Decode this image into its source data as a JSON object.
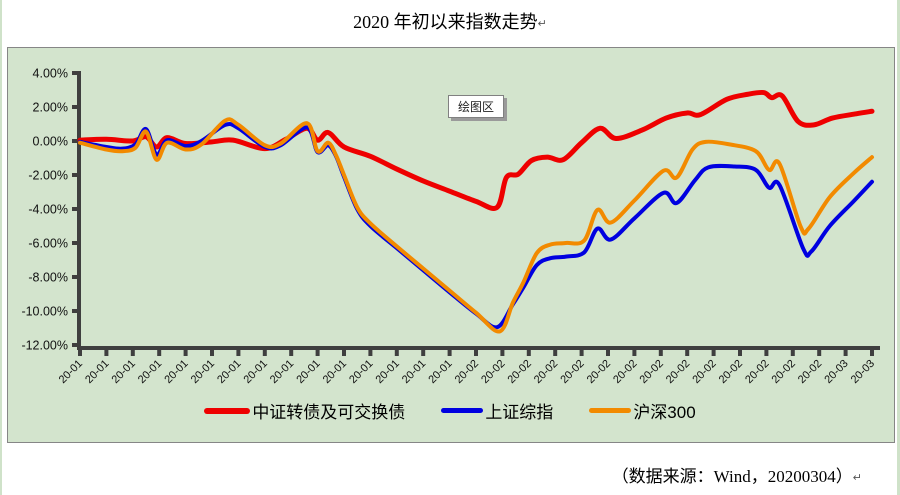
{
  "page": {
    "title": "2020 年初以来指数走势",
    "paragraph_mark": "↵",
    "footer": "（数据来源：Wind，20200304）"
  },
  "tooltip": {
    "label": "绘图区"
  },
  "chart_data": {
    "type": "line",
    "title": "2020 年初以来指数走势",
    "xlabel": "",
    "ylabel": "",
    "y_unit": "percent",
    "x_unit": "trading-day index (labels show YY-MM)",
    "ylim": [
      -12,
      4
    ],
    "y_tick_labels": [
      "4.00%",
      "2.00%",
      "0.00%",
      "-2.00%",
      "-4.00%",
      "-6.00%",
      "-8.00%",
      "-10.00%",
      "-12.00%"
    ],
    "y_tick_values": [
      4,
      2,
      0,
      -2,
      -4,
      -6,
      -8,
      -10,
      -12
    ],
    "x_tick_labels": [
      "20-01",
      "20-01",
      "20-01",
      "20-01",
      "20-01",
      "20-01",
      "20-01",
      "20-01",
      "20-01",
      "20-01",
      "20-01",
      "20-01",
      "20-01",
      "20-01",
      "20-01",
      "20-02",
      "20-02",
      "20-02",
      "20-02",
      "20-02",
      "20-02",
      "20-02",
      "20-02",
      "20-02",
      "20-02",
      "20-02",
      "20-02",
      "20-02",
      "20-02",
      "20-03",
      "20-03"
    ],
    "grid": false,
    "legend_position": "bottom",
    "plot_bg": "#d3e4cd",
    "axis_color": "#3f3f3f",
    "series": [
      {
        "name": "中证转债及可交换债",
        "color": "#ee0000",
        "width": 5,
        "points": [
          [
            0,
            0.05
          ],
          [
            1,
            0.1
          ],
          [
            2,
            0.0
          ],
          [
            2.5,
            0.25
          ],
          [
            2.9,
            -0.35
          ],
          [
            3.3,
            0.2
          ],
          [
            4,
            -0.15
          ],
          [
            5,
            -0.05
          ],
          [
            5.8,
            0.05
          ],
          [
            7,
            -0.45
          ],
          [
            7.8,
            0.1
          ],
          [
            8.6,
            0.75
          ],
          [
            9.0,
            0.05
          ],
          [
            9.4,
            0.5
          ],
          [
            10,
            -0.35
          ],
          [
            11,
            -0.9
          ],
          [
            12,
            -1.65
          ],
          [
            13,
            -2.35
          ],
          [
            14,
            -2.95
          ],
          [
            15,
            -3.55
          ],
          [
            15.8,
            -3.9
          ],
          [
            16.15,
            -2.15
          ],
          [
            16.6,
            -1.95
          ],
          [
            17.1,
            -1.15
          ],
          [
            17.7,
            -0.95
          ],
          [
            18.3,
            -1.1
          ],
          [
            19,
            -0.1
          ],
          [
            19.7,
            0.75
          ],
          [
            20.3,
            0.15
          ],
          [
            21.3,
            0.65
          ],
          [
            22.2,
            1.35
          ],
          [
            23,
            1.65
          ],
          [
            23.5,
            1.55
          ],
          [
            24.5,
            2.45
          ],
          [
            25.3,
            2.75
          ],
          [
            25.9,
            2.85
          ],
          [
            26.2,
            2.55
          ],
          [
            26.6,
            2.65
          ],
          [
            27.2,
            1.15
          ],
          [
            27.8,
            0.95
          ],
          [
            28.5,
            1.35
          ],
          [
            29.4,
            1.6
          ],
          [
            30,
            1.75
          ]
        ]
      },
      {
        "name": "上证综指",
        "color": "#0000e0",
        "width": 4,
        "points": [
          [
            0,
            -0.05
          ],
          [
            1,
            -0.35
          ],
          [
            1.6,
            -0.45
          ],
          [
            2.1,
            -0.2
          ],
          [
            2.5,
            0.7
          ],
          [
            2.9,
            -0.8
          ],
          [
            3.3,
            0.05
          ],
          [
            4,
            -0.3
          ],
          [
            4.6,
            0.0
          ],
          [
            5.5,
            0.95
          ],
          [
            6,
            0.75
          ],
          [
            7,
            -0.35
          ],
          [
            7.6,
            -0.25
          ],
          [
            8.6,
            0.8
          ],
          [
            9.0,
            -0.65
          ],
          [
            9.4,
            -0.25
          ],
          [
            9.7,
            -0.9
          ],
          [
            10,
            -2.1
          ],
          [
            10.5,
            -4.0
          ],
          [
            11,
            -5.0
          ],
          [
            12,
            -6.3
          ],
          [
            13,
            -7.6
          ],
          [
            14,
            -8.9
          ],
          [
            15,
            -10.15
          ],
          [
            15.8,
            -10.95
          ],
          [
            16.4,
            -9.6
          ],
          [
            16.8,
            -8.6
          ],
          [
            17.3,
            -7.3
          ],
          [
            17.8,
            -6.9
          ],
          [
            18.4,
            -6.8
          ],
          [
            19.1,
            -6.55
          ],
          [
            19.6,
            -5.15
          ],
          [
            20.1,
            -5.8
          ],
          [
            21,
            -4.55
          ],
          [
            22.1,
            -3.05
          ],
          [
            22.6,
            -3.65
          ],
          [
            23.3,
            -2.3
          ],
          [
            23.8,
            -1.55
          ],
          [
            24.8,
            -1.5
          ],
          [
            25.6,
            -1.7
          ],
          [
            26.1,
            -2.75
          ],
          [
            26.5,
            -2.6
          ],
          [
            27.4,
            -6.35
          ],
          [
            27.7,
            -6.5
          ],
          [
            28.4,
            -5.0
          ],
          [
            29.3,
            -3.55
          ],
          [
            30,
            -2.4
          ]
        ]
      },
      {
        "name": "沪深300",
        "color": "#f28a00",
        "width": 4,
        "points": [
          [
            0,
            -0.1
          ],
          [
            1,
            -0.5
          ],
          [
            1.6,
            -0.6
          ],
          [
            2.1,
            -0.4
          ],
          [
            2.5,
            0.55
          ],
          [
            2.9,
            -1.1
          ],
          [
            3.3,
            -0.1
          ],
          [
            4,
            -0.5
          ],
          [
            4.6,
            -0.2
          ],
          [
            5.5,
            1.2
          ],
          [
            6,
            0.95
          ],
          [
            7,
            -0.25
          ],
          [
            7.6,
            -0.15
          ],
          [
            8.6,
            1.05
          ],
          [
            9.0,
            -0.6
          ],
          [
            9.4,
            -0.1
          ],
          [
            9.7,
            -0.85
          ],
          [
            10,
            -2.0
          ],
          [
            10.5,
            -3.9
          ],
          [
            11,
            -4.85
          ],
          [
            12,
            -6.2
          ],
          [
            13,
            -7.5
          ],
          [
            14,
            -8.8
          ],
          [
            15,
            -10.1
          ],
          [
            15.9,
            -11.2
          ],
          [
            16.4,
            -9.5
          ],
          [
            16.8,
            -8.3
          ],
          [
            17.3,
            -6.6
          ],
          [
            17.8,
            -6.1
          ],
          [
            18.4,
            -6.0
          ],
          [
            19.1,
            -5.85
          ],
          [
            19.6,
            -4.05
          ],
          [
            20.1,
            -4.8
          ],
          [
            21,
            -3.5
          ],
          [
            22.1,
            -1.75
          ],
          [
            22.6,
            -2.15
          ],
          [
            23.2,
            -0.5
          ],
          [
            23.7,
            -0.05
          ],
          [
            24.6,
            -0.2
          ],
          [
            25.6,
            -0.6
          ],
          [
            26.1,
            -1.7
          ],
          [
            26.5,
            -1.35
          ],
          [
            27.3,
            -5.05
          ],
          [
            27.6,
            -5.15
          ],
          [
            28.4,
            -3.3
          ],
          [
            29.3,
            -1.9
          ],
          [
            30,
            -0.95
          ]
        ]
      }
    ]
  }
}
